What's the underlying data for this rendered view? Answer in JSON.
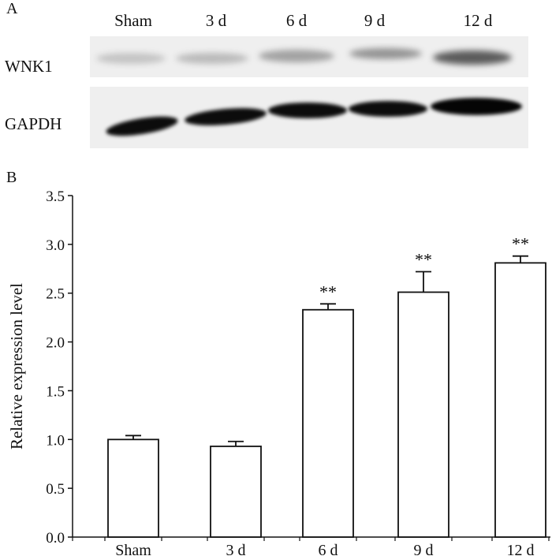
{
  "panels": {
    "a": "A",
    "b": "B"
  },
  "blot": {
    "lanes": [
      "Sham",
      "3 d",
      "6 d",
      "9 d",
      "12 d"
    ],
    "proteins": [
      "WNK1",
      "GAPDH"
    ],
    "band_intensity": {
      "WNK1": [
        0.18,
        0.22,
        0.32,
        0.38,
        0.62
      ],
      "GAPDH": [
        0.95,
        0.95,
        0.95,
        0.95,
        0.98
      ]
    }
  },
  "chart_data": {
    "type": "bar",
    "categories": [
      "Sham",
      "3 d",
      "6 d",
      "9 d",
      "12 d"
    ],
    "values": [
      1.0,
      0.93,
      2.33,
      2.51,
      2.81
    ],
    "error": [
      0.04,
      0.05,
      0.06,
      0.21,
      0.07
    ],
    "significance": [
      "",
      "",
      "**",
      "**",
      "**"
    ],
    "ylabel": "Relative expression level",
    "ylim": [
      0.0,
      3.5
    ],
    "yticks": [
      "0.0",
      "0.5",
      "1.0",
      "1.5",
      "2.0",
      "2.5",
      "3.0",
      "3.5"
    ],
    "grid": false,
    "bar_fill": "#ffffff",
    "bar_stroke": "#111111"
  }
}
